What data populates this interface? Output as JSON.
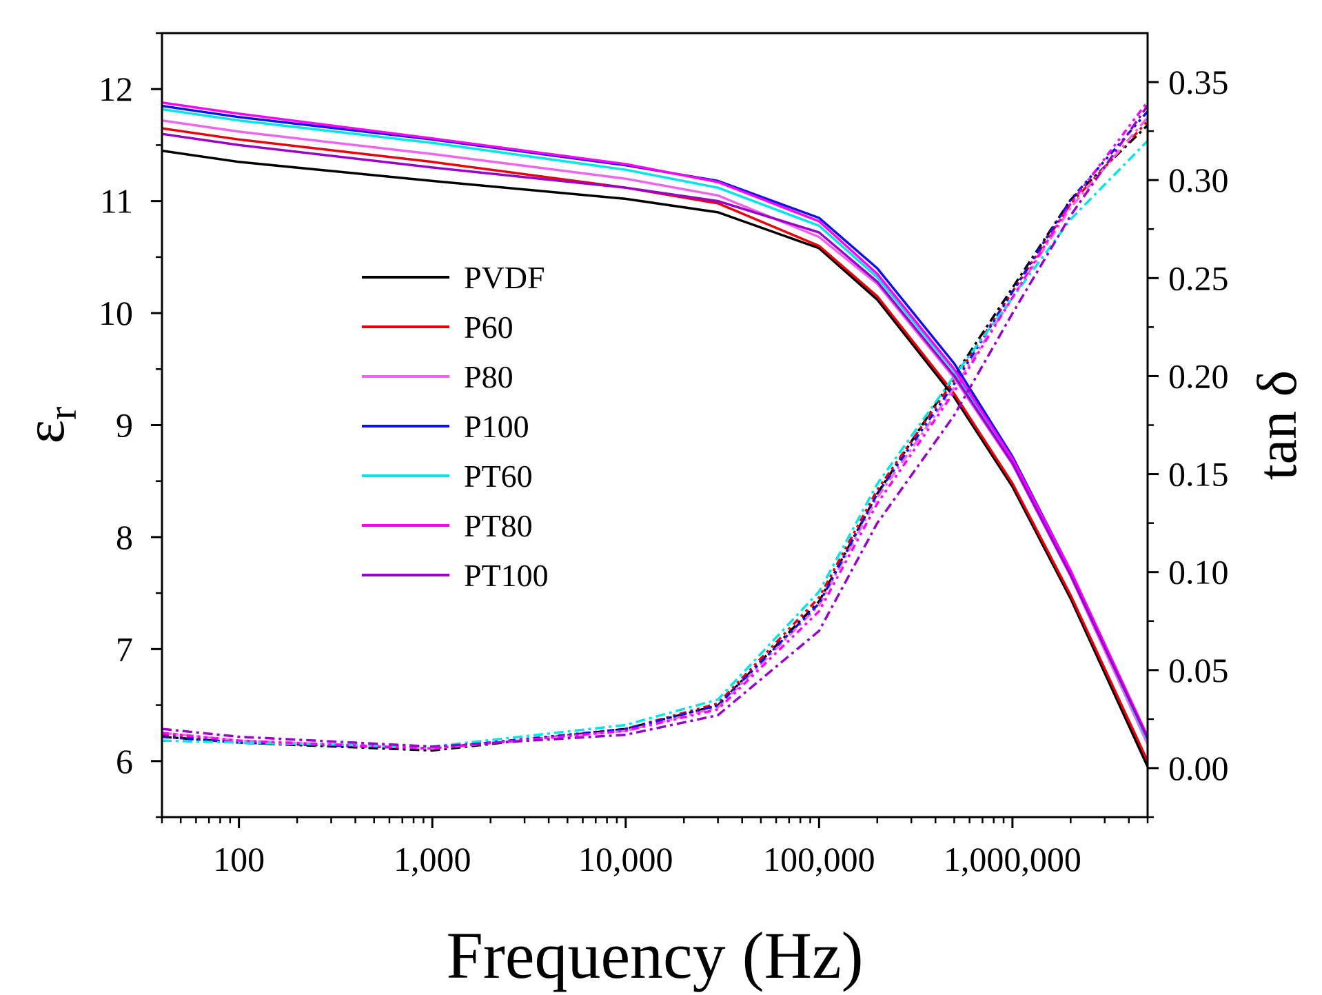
{
  "chart_data": {
    "type": "line",
    "xlabel": "Frequency (Hz)",
    "ylabel": "ε",
    "ylabel_sub": "r",
    "y2label": "tan δ",
    "x_scale": "log",
    "xlim": [
      40,
      5000000
    ],
    "ylim": [
      5.5,
      12.5
    ],
    "y2lim": [
      -0.025,
      0.375
    ],
    "x_ticks": [
      100,
      1000,
      10000,
      100000,
      1000000
    ],
    "x_tick_labels": [
      "100",
      "1,000",
      "10,000",
      "100,000",
      "1,000,000"
    ],
    "y_ticks": [
      6,
      7,
      8,
      9,
      10,
      11,
      12
    ],
    "y_tick_labels": [
      "6",
      "7",
      "8",
      "9",
      "10",
      "11",
      "12"
    ],
    "y2_ticks": [
      0,
      0.05,
      0.1,
      0.15,
      0.2,
      0.25,
      0.3,
      0.35
    ],
    "y2_tick_labels": [
      "0.00",
      "0.05",
      "0.10",
      "0.15",
      "0.20",
      "0.25",
      "0.30",
      "0.35"
    ],
    "grid": false,
    "legend_position": "center-left",
    "x": [
      40,
      100,
      1000,
      10000,
      30000,
      100000,
      200000,
      500000,
      1000000,
      2000000,
      5000000
    ],
    "series": [
      {
        "name": "PVDF",
        "color": "#000000",
        "eps": [
          11.45,
          11.35,
          11.18,
          11.02,
          10.9,
          10.58,
          10.12,
          9.25,
          8.45,
          7.45,
          5.95
        ],
        "tan": [
          0.016,
          0.013,
          0.009,
          0.02,
          0.032,
          0.085,
          0.14,
          0.2,
          0.245,
          0.29,
          0.328
        ]
      },
      {
        "name": "P60",
        "color": "#e8000b",
        "eps": [
          11.65,
          11.55,
          11.35,
          11.12,
          10.98,
          10.6,
          10.15,
          9.28,
          8.48,
          7.48,
          6.0
        ],
        "tan": [
          0.017,
          0.013,
          0.01,
          0.02,
          0.033,
          0.087,
          0.142,
          0.198,
          0.243,
          0.288,
          0.33
        ]
      },
      {
        "name": "P80",
        "color": "#ee66ee",
        "eps": [
          11.72,
          11.62,
          11.42,
          11.2,
          11.05,
          10.68,
          10.26,
          9.42,
          8.65,
          7.65,
          6.15
        ],
        "tan": [
          0.018,
          0.014,
          0.01,
          0.019,
          0.031,
          0.083,
          0.138,
          0.194,
          0.24,
          0.286,
          0.332
        ]
      },
      {
        "name": "P100",
        "color": "#1010e8",
        "eps": [
          11.85,
          11.75,
          11.55,
          11.32,
          11.18,
          10.85,
          10.4,
          9.55,
          8.72,
          7.7,
          6.2
        ],
        "tan": [
          0.016,
          0.013,
          0.01,
          0.02,
          0.032,
          0.084,
          0.14,
          0.196,
          0.243,
          0.29,
          0.335
        ]
      },
      {
        "name": "PT60",
        "color": "#00e5e5",
        "eps": [
          11.82,
          11.72,
          11.52,
          11.28,
          11.12,
          10.78,
          10.32,
          9.48,
          8.68,
          7.68,
          6.18
        ],
        "tan": [
          0.014,
          0.013,
          0.011,
          0.022,
          0.035,
          0.09,
          0.145,
          0.2,
          0.24,
          0.28,
          0.32
        ]
      },
      {
        "name": "PT80",
        "color": "#ff00ff",
        "eps": [
          11.88,
          11.78,
          11.56,
          11.33,
          11.17,
          10.82,
          10.35,
          9.5,
          8.7,
          7.7,
          6.22
        ],
        "tan": [
          0.018,
          0.014,
          0.01,
          0.019,
          0.03,
          0.08,
          0.135,
          0.192,
          0.24,
          0.288,
          0.34
        ]
      },
      {
        "name": "PT100",
        "color": "#9900cc",
        "eps": [
          11.6,
          11.5,
          11.3,
          11.12,
          11.0,
          10.72,
          10.28,
          9.44,
          8.66,
          7.66,
          6.2
        ],
        "tan": [
          0.02,
          0.016,
          0.011,
          0.017,
          0.027,
          0.07,
          0.125,
          0.18,
          0.232,
          0.282,
          0.338
        ]
      }
    ]
  }
}
